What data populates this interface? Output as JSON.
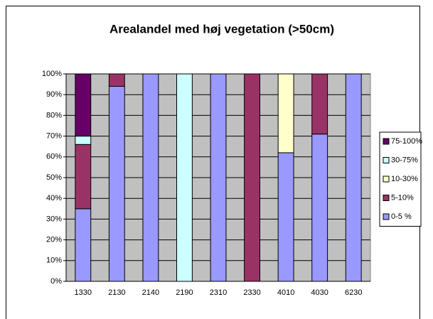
{
  "chart_data": {
    "type": "stacked_bar",
    "title": "Arealandel med høj vegetation (>50cm)",
    "categories": [
      "1330",
      "2130",
      "2140",
      "2190",
      "2310",
      "2330",
      "4010",
      "4030",
      "6230"
    ],
    "series": [
      {
        "name": "0-5 %",
        "color": "#9999ff",
        "values": [
          35,
          94,
          100,
          0,
          100,
          0,
          62,
          71,
          100
        ]
      },
      {
        "name": "5-10%",
        "color": "#993366",
        "values": [
          31,
          6,
          0,
          0,
          0,
          100,
          0,
          29,
          0
        ]
      },
      {
        "name": "10-30%",
        "color": "#ffffcc",
        "values": [
          0,
          0,
          0,
          0,
          0,
          0,
          38,
          0,
          0
        ]
      },
      {
        "name": "30-75%",
        "color": "#ccffff",
        "values": [
          4,
          0,
          0,
          100,
          0,
          0,
          0,
          0,
          0
        ]
      },
      {
        "name": "75-100%",
        "color": "#660066",
        "values": [
          30,
          0,
          0,
          0,
          0,
          0,
          0,
          0,
          0
        ]
      }
    ],
    "ylim": [
      0,
      100
    ],
    "yticks": [
      {
        "value": 0,
        "label": "0%"
      },
      {
        "value": 10,
        "label": "10%"
      },
      {
        "value": 20,
        "label": "20%"
      },
      {
        "value": 30,
        "label": "30%"
      },
      {
        "value": 40,
        "label": "40%"
      },
      {
        "value": 50,
        "label": "50%"
      },
      {
        "value": 60,
        "label": "60%"
      },
      {
        "value": 70,
        "label": "70%"
      },
      {
        "value": 80,
        "label": "80%"
      },
      {
        "value": 90,
        "label": "90%"
      },
      {
        "value": 100,
        "label": "100%"
      }
    ],
    "grid": true,
    "legend": "right"
  }
}
